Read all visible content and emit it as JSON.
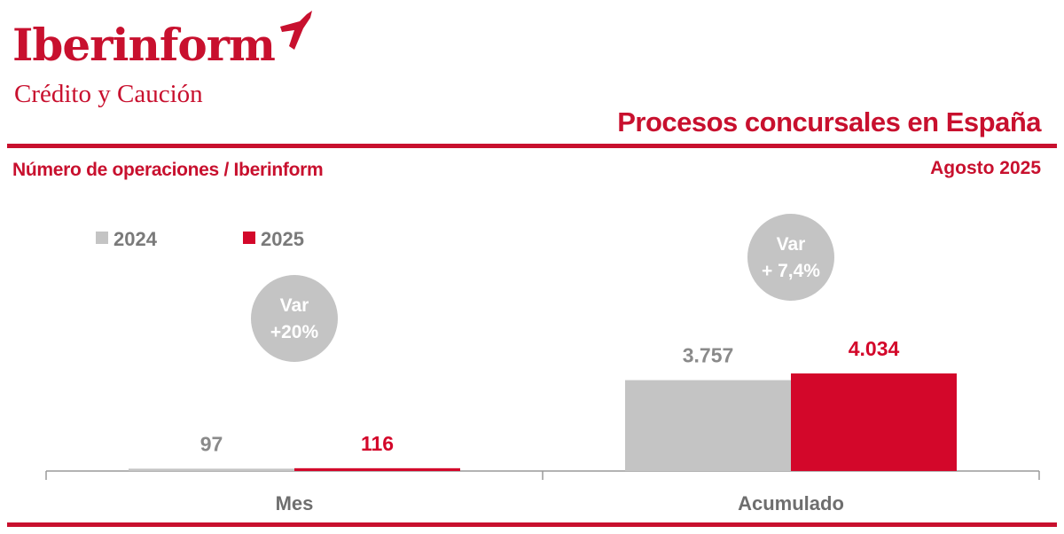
{
  "brand": {
    "name": "Iberinform",
    "tagline": "Crédito y Caución",
    "accent_color": "#c8102e",
    "mark_icon": "plane-wing-icon"
  },
  "header": {
    "title": "Procesos concursales en España",
    "subtitle": "Número de operaciones / Iberinform",
    "period": "Agosto 2025"
  },
  "chart_data": {
    "type": "bar",
    "categories": [
      "Mes",
      "Acumulado"
    ],
    "series": [
      {
        "name": "2024",
        "color": "#c4c4c4",
        "values": [
          97,
          3757
        ],
        "labels": [
          "97",
          "3.757"
        ]
      },
      {
        "name": "2025",
        "color": "#d3072a",
        "values": [
          116,
          4034
        ],
        "labels": [
          "116",
          "4.034"
        ]
      }
    ],
    "variation": [
      {
        "label": "Var",
        "value": "+20%"
      },
      {
        "label": "Var",
        "value": "+ 7,4%"
      }
    ],
    "title": "Procesos concursales en España",
    "xlabel": "",
    "ylabel": "",
    "ylim": [
      0,
      4034
    ],
    "legend_position": "top-left",
    "grid": false
  }
}
